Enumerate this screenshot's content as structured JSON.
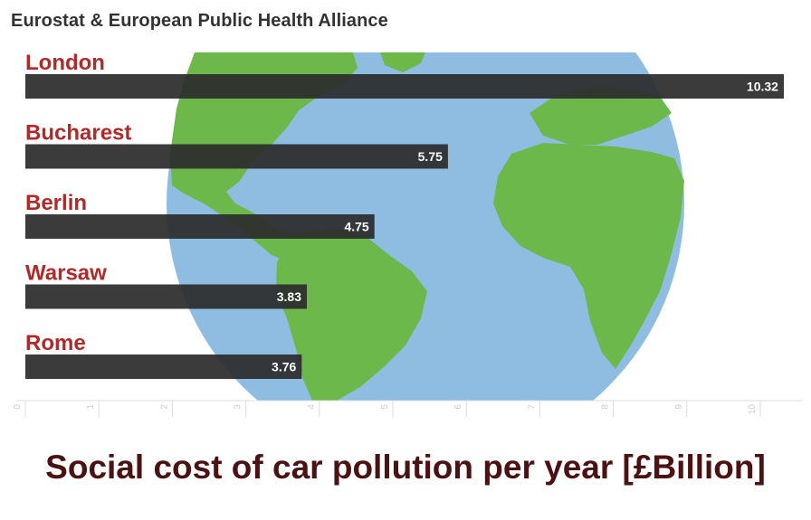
{
  "source": "Eurostat & European Public Health Alliance",
  "footer_title": "Social cost of car pollution per year [£Billion]",
  "colors": {
    "bar": "#2c2c2c",
    "category_label": "#b02a2a",
    "value_label": "#ffffff",
    "ocean": "#8fbde2",
    "land": "#6cb84b",
    "title": "#4a1212",
    "tick": "#cccccc",
    "axis": "#dddddd"
  },
  "background_image": "world-globe",
  "chart_data": {
    "type": "bar",
    "orientation": "horizontal",
    "categories": [
      "London",
      "Bucharest",
      "Berlin",
      "Warsaw",
      "Rome"
    ],
    "values": [
      10.32,
      5.75,
      4.75,
      3.83,
      3.76
    ],
    "value_labels": [
      "10.32",
      "5.75",
      "4.75",
      "3.83",
      "3.76"
    ],
    "xlim": [
      0,
      10.5
    ],
    "xticks": [
      "0",
      "1",
      "2",
      "3",
      "4",
      "5",
      "6",
      "7",
      "8",
      "9",
      "10"
    ],
    "grid": false,
    "legend": "none"
  }
}
